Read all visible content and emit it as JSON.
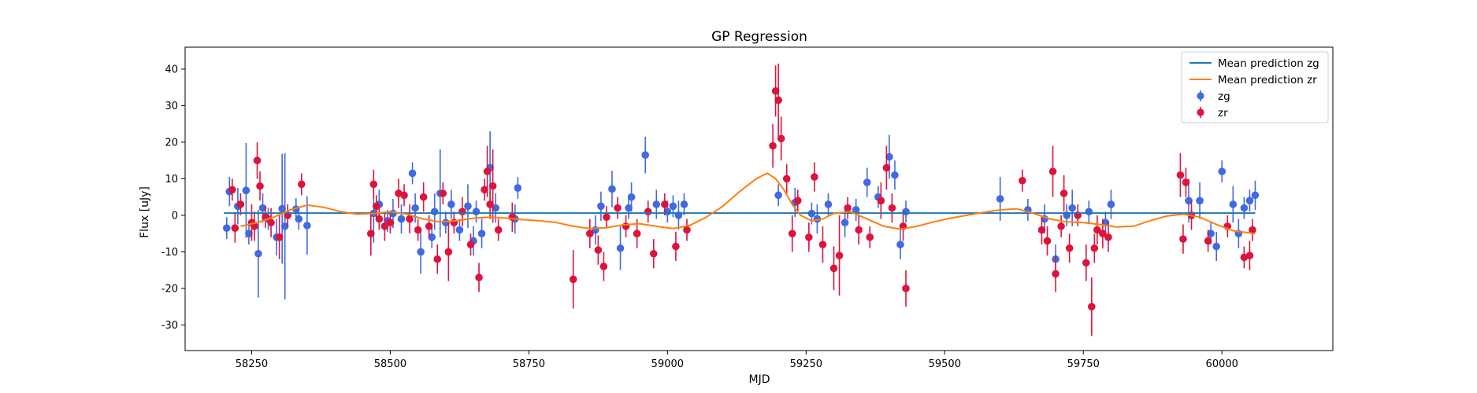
{
  "chart_data": {
    "type": "scatter",
    "title": "GP Regression",
    "xlabel": "MJD",
    "ylabel": "Flux [uJy]",
    "xlim": [
      58130,
      60200
    ],
    "ylim": [
      -37,
      46
    ],
    "xticks": [
      58250,
      58500,
      58750,
      59000,
      59250,
      59500,
      59750,
      60000
    ],
    "yticks": [
      -30,
      -20,
      -10,
      0,
      10,
      20,
      30,
      40
    ],
    "legend_position": "top-right",
    "grid": false,
    "colors": {
      "zg_line": "#1f77b4",
      "zr_line": "#ff7f0e",
      "zg_points": "#4169e1",
      "zr_points": "#dc143c"
    },
    "series": [
      {
        "name": "Mean prediction zg",
        "kind": "line",
        "x": [
          58200,
          60060
        ],
        "y": [
          0.6,
          0.6
        ]
      },
      {
        "name": "Mean prediction zr",
        "kind": "line",
        "x": [
          58230,
          58260,
          58290,
          58320,
          58350,
          58380,
          58410,
          58440,
          58470,
          58500,
          58530,
          58560,
          58590,
          58620,
          58650,
          58680,
          58710,
          58740,
          58770,
          58800,
          58830,
          58860,
          58890,
          58920,
          58950,
          58980,
          59010,
          59040,
          59070,
          59100,
          59130,
          59160,
          59180,
          59195,
          59210,
          59225,
          59240,
          59260,
          59280,
          59300,
          59330,
          59360,
          59390,
          59420,
          59450,
          59480,
          59510,
          59540,
          59570,
          59600,
          59630,
          59660,
          59690,
          59720,
          59750,
          59780,
          59810,
          59840,
          59870,
          59900,
          59930,
          59960,
          59990,
          60020,
          60060
        ],
        "y": [
          -3,
          -2,
          -0.5,
          1.5,
          2.8,
          2.2,
          1.0,
          0.3,
          0.5,
          1.0,
          0.3,
          -1.0,
          -1.8,
          -1.5,
          -0.8,
          -0.5,
          -0.8,
          -1.2,
          -1.5,
          -2.0,
          -3.0,
          -3.6,
          -3.4,
          -2.6,
          -2.3,
          -3.0,
          -3.6,
          -2.8,
          -0.5,
          2.5,
          6.5,
          10.0,
          11.5,
          10.0,
          7.0,
          3.0,
          0.0,
          -1.5,
          -1.0,
          0.5,
          1.0,
          -1.0,
          -3.0,
          -3.8,
          -3.0,
          -1.8,
          -0.8,
          0.0,
          0.8,
          1.5,
          1.8,
          0.5,
          -1.0,
          -1.8,
          -2.0,
          -2.5,
          -3.2,
          -3.0,
          -1.5,
          -0.2,
          0.3,
          -0.5,
          -2.5,
          -4.2,
          -5.0
        ]
      },
      {
        "name": "zg",
        "kind": "errorbar",
        "x": [
          58205,
          58210,
          58225,
          58240,
          58245,
          58262,
          58270,
          58280,
          58295,
          58305,
          58310,
          58330,
          58335,
          58350,
          58470,
          58480,
          58495,
          58505,
          58520,
          58540,
          58545,
          58555,
          58575,
          58580,
          58590,
          58600,
          58610,
          58625,
          58640,
          58650,
          58655,
          58665,
          58680,
          58690,
          58725,
          58730,
          58870,
          58880,
          58900,
          58915,
          58930,
          58935,
          58960,
          58980,
          59000,
          59010,
          59020,
          59030,
          59200,
          59230,
          59260,
          59270,
          59290,
          59320,
          59340,
          59360,
          59380,
          59400,
          59410,
          59420,
          59430,
          59600,
          59650,
          59680,
          59700,
          59720,
          59730,
          59760,
          59790,
          59800,
          59940,
          59960,
          59980,
          59990,
          60000,
          60020,
          60030,
          60040,
          60050,
          60060
        ],
        "y": [
          -3.5,
          6.5,
          2.5,
          6.8,
          -5.0,
          -10.5,
          2.0,
          -1.0,
          -6.0,
          1.8,
          -3.0,
          1.7,
          -1.0,
          -2.8,
          0.5,
          3.0,
          -1.5,
          0.5,
          -1.0,
          11.5,
          2.0,
          -10.0,
          -6.0,
          1.0,
          6.0,
          -2.0,
          3.0,
          -4.0,
          2.5,
          -7.0,
          1.0,
          -5.0,
          13.0,
          2.0,
          -1.0,
          7.5,
          -4.0,
          2.5,
          7.2,
          -9.0,
          2.0,
          5.0,
          16.5,
          3.0,
          1.0,
          2.5,
          0.0,
          3.0,
          5.5,
          3.5,
          0.5,
          -1.0,
          3.0,
          -2.0,
          1.5,
          9.0,
          5.0,
          16.0,
          11.0,
          -8.0,
          1.0,
          4.5,
          1.5,
          -1.0,
          -12.0,
          0.0,
          2.0,
          1.0,
          -2.0,
          3.0,
          4.0,
          4.0,
          -5.0,
          -8.5,
          12.0,
          3.0,
          -5.0,
          2.0,
          4.0,
          5.5
        ],
        "err": [
          3,
          4,
          5,
          13,
          3,
          12,
          4,
          3,
          5,
          15,
          20,
          3,
          3,
          8,
          8,
          4,
          3,
          4,
          4,
          3,
          4,
          6,
          3,
          5,
          12,
          3,
          4,
          3,
          6,
          4,
          3,
          4,
          10,
          4,
          4,
          3,
          4,
          4,
          5,
          6,
          3,
          4,
          5,
          4,
          3,
          3,
          4,
          3,
          3,
          4,
          3,
          4,
          3,
          4,
          3,
          4,
          3,
          6,
          4,
          4,
          3,
          6,
          3,
          4,
          4,
          3,
          5,
          3,
          3,
          4,
          6,
          5,
          3,
          4,
          3,
          5,
          4,
          3,
          3,
          4
        ]
      },
      {
        "name": "zr",
        "kind": "errorbar",
        "x": [
          58215,
          58220,
          58230,
          58250,
          58255,
          58260,
          58265,
          58275,
          58285,
          58300,
          58315,
          58340,
          58465,
          58470,
          58475,
          58480,
          58490,
          58500,
          58515,
          58525,
          58535,
          58550,
          58560,
          58570,
          58585,
          58595,
          58605,
          58615,
          58630,
          58645,
          58660,
          58670,
          58675,
          58680,
          58685,
          58695,
          58720,
          58830,
          58860,
          58875,
          58885,
          58890,
          58910,
          58925,
          58945,
          58965,
          58975,
          58995,
          59015,
          59035,
          59190,
          59195,
          59200,
          59205,
          59215,
          59225,
          59235,
          59255,
          59265,
          59280,
          59300,
          59310,
          59325,
          59345,
          59365,
          59385,
          59395,
          59405,
          59425,
          59430,
          59640,
          59675,
          59685,
          59695,
          59700,
          59710,
          59715,
          59725,
          59740,
          59755,
          59765,
          59770,
          59775,
          59785,
          59795,
          59925,
          59930,
          59935,
          59945,
          59975,
          60010,
          60040,
          60050,
          60055
        ],
        "y": [
          7.0,
          -3.5,
          3.0,
          -2.0,
          -3.0,
          15.0,
          8.0,
          -0.5,
          -2.0,
          -6.0,
          0.0,
          8.5,
          -5.0,
          8.5,
          2.5,
          -1.0,
          -3.0,
          -2.0,
          6.0,
          5.5,
          -1.0,
          -4.0,
          5.0,
          -3.0,
          -12.0,
          6.0,
          -10.0,
          -2.0,
          1.0,
          -8.0,
          -17.0,
          7.0,
          12.0,
          3.0,
          8.0,
          -4.0,
          -0.5,
          -17.5,
          -5.0,
          -9.5,
          -14.0,
          -0.5,
          2.0,
          -3.0,
          -5.0,
          1.0,
          -10.5,
          3.0,
          -8.5,
          -4.0,
          19.0,
          34.0,
          31.5,
          21.0,
          10.0,
          -5.0,
          4.0,
          -6.0,
          10.5,
          -8.0,
          -14.5,
          -11.0,
          2.0,
          -4.0,
          -6.0,
          4.0,
          13.0,
          2.0,
          -3.0,
          -20.0,
          9.5,
          -4.0,
          -7.0,
          12.0,
          -16.0,
          -3.0,
          6.0,
          -9.0,
          0.0,
          -13.0,
          -25.0,
          -9.0,
          -4.0,
          -5.0,
          -6.0,
          11.0,
          -6.5,
          9.0,
          0.0,
          -7.0,
          -3.0,
          -11.5,
          -11.0,
          -4.0
        ],
        "err": [
          3,
          4,
          3,
          5,
          4,
          5,
          4,
          3,
          4,
          6,
          3,
          3,
          6,
          4,
          3,
          3,
          4,
          3,
          4,
          3,
          4,
          3,
          4,
          3,
          4,
          3,
          8,
          3,
          4,
          3,
          4,
          3,
          7,
          4,
          10,
          3,
          4,
          8,
          4,
          4,
          4,
          3,
          3,
          3,
          4,
          3,
          4,
          3,
          4,
          3,
          6,
          7,
          10,
          6,
          4,
          5,
          3,
          4,
          4,
          5,
          6,
          11,
          3,
          4,
          3,
          5,
          6,
          4,
          4,
          5,
          3,
          4,
          4,
          7,
          5,
          3,
          5,
          4,
          3,
          5,
          8,
          4,
          4,
          4,
          4,
          6,
          4,
          4,
          4,
          3,
          3,
          3,
          4,
          3
        ]
      }
    ]
  }
}
